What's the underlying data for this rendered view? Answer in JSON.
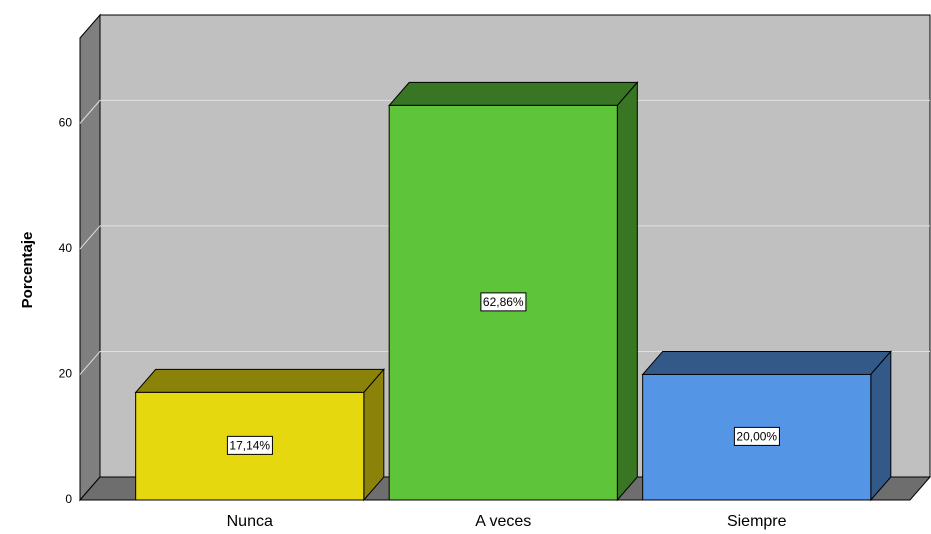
{
  "chart_data": {
    "type": "bar3d",
    "y_label": "Porcentaje",
    "categories": [
      "Nunca",
      "A veces",
      "Siempre"
    ],
    "values": [
      17.14,
      62.86,
      20.0
    ],
    "value_labels": [
      "17,14%",
      "62,86%",
      "20,00%"
    ],
    "colors": [
      "#e6d80f",
      "#5ec43a",
      "#5595e5"
    ],
    "ylim": [
      0,
      73.6
    ],
    "yticks": [
      0,
      20,
      40,
      60
    ],
    "grid": true
  }
}
